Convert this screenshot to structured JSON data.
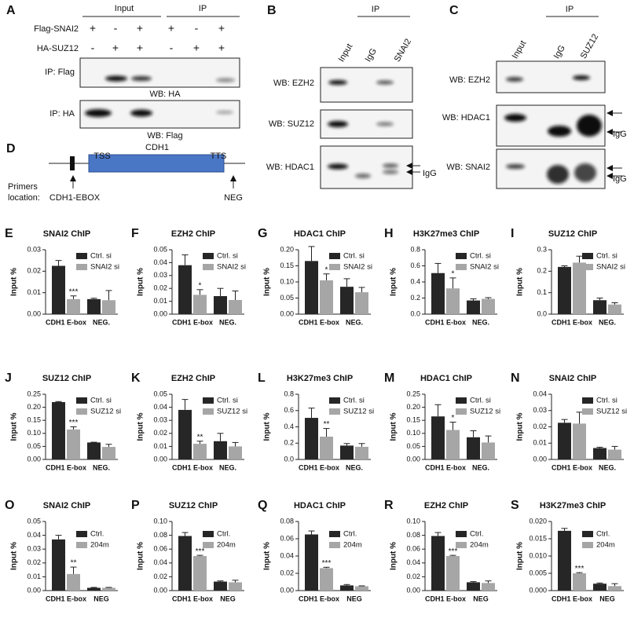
{
  "panel_a": {
    "label": "A",
    "header_input": "Input",
    "header_ip": "IP",
    "rows": [
      {
        "name": "Flag-SNAI2",
        "signs": [
          "+",
          "-",
          "+",
          "+",
          "-",
          "+"
        ]
      },
      {
        "name": "HA-SUZ12",
        "signs": [
          "-",
          "+",
          "+",
          "-",
          "+",
          "+"
        ]
      }
    ],
    "blots": [
      {
        "label": "IP: Flag",
        "wb": "WB: HA"
      },
      {
        "label": "IP: HA",
        "wb": "WB: Flag"
      }
    ]
  },
  "panel_b": {
    "label": "B",
    "ip": "IP",
    "lanes": [
      "Input",
      "IgG",
      "SNAI2"
    ],
    "blots": [
      "WB: EZH2",
      "WB: SUZ12",
      "WB: HDAC1"
    ],
    "igg": "IgG"
  },
  "panel_c": {
    "label": "C",
    "ip": "IP",
    "lanes": [
      "Input",
      "IgG",
      "SUZ12"
    ],
    "blots": [
      "WB: EZH2",
      "WB: HDAC1",
      "WB: SNAI2"
    ],
    "igg": "IgG"
  },
  "panel_d": {
    "label": "D",
    "tss": "TSS",
    "gene": "CDH1",
    "tts": "TTS",
    "primers_1": "Primers",
    "primers_2": "location:",
    "primer_ebox": "CDH1-EBOX",
    "primer_neg": "NEG"
  },
  "chart_data": [
    {
      "type": "bar",
      "label": "E",
      "title": "SNAI2 ChIP",
      "y_label": "Input %",
      "categories": [
        "CDH1 E-box",
        "NEG."
      ],
      "ylim": [
        0,
        0.03
      ],
      "yticks": [
        {
          "value": 0,
          "label": "0.00"
        },
        0.01,
        0.02,
        0.03
      ],
      "series": [
        {
          "name": "Ctrl. si",
          "color": "#262626",
          "values": [
            0.0225,
            0.007
          ],
          "errors": [
            0.0025,
            0.0004
          ]
        },
        {
          "name": "SNAI2 si",
          "color": "#a6a6a6",
          "values": [
            0.007,
            0.0065
          ],
          "errors": [
            0.0015,
            0.0045
          ],
          "significance": [
            "***",
            null
          ]
        }
      ]
    },
    {
      "type": "bar",
      "label": "F",
      "title": "EZH2 ChIP",
      "y_label": "Input %",
      "categories": [
        "CDH1 E-box",
        "NEG."
      ],
      "ylim": [
        0,
        0.05
      ],
      "yticks": [
        {
          "value": 0,
          "label": "0.00"
        },
        0.01,
        0.02,
        0.03,
        0.04,
        0.05
      ],
      "series": [
        {
          "name": "Ctrl. si",
          "color": "#262626",
          "values": [
            0.038,
            0.014
          ],
          "errors": [
            0.008,
            0.006
          ]
        },
        {
          "name": "SNAI2 si",
          "color": "#a6a6a6",
          "values": [
            0.015,
            0.011
          ],
          "errors": [
            0.004,
            0.007
          ],
          "significance": [
            "*",
            null
          ]
        }
      ]
    },
    {
      "type": "bar",
      "label": "G",
      "title": "HDAC1 ChIP",
      "y_label": "Input %",
      "categories": [
        "CDH1 E-box",
        "NEG."
      ],
      "ylim": [
        0,
        0.2
      ],
      "yticks": [
        {
          "value": 0,
          "label": "0.00"
        },
        0.05,
        {
          "value": 0.1,
          "label": "0.10"
        },
        0.15,
        {
          "value": 0.2,
          "label": "0.20"
        }
      ],
      "series": [
        {
          "name": "Ctrl. si",
          "color": "#262626",
          "values": [
            0.165,
            0.085
          ],
          "errors": [
            0.045,
            0.025
          ]
        },
        {
          "name": "SNAI2 si",
          "color": "#a6a6a6",
          "values": [
            0.105,
            0.068
          ],
          "errors": [
            0.02,
            0.015
          ],
          "significance": [
            "*",
            null
          ]
        }
      ]
    },
    {
      "type": "bar",
      "label": "H",
      "title": "H3K27me3 ChIP",
      "y_label": "Input %",
      "categories": [
        "CDH1 E-box",
        "NEG."
      ],
      "ylim": [
        0,
        0.8
      ],
      "yticks": [
        {
          "value": 0,
          "label": "0.0"
        },
        0.2,
        0.4,
        0.6,
        0.8
      ],
      "series": [
        {
          "name": "Ctrl. si",
          "color": "#262626",
          "values": [
            0.51,
            0.17
          ],
          "errors": [
            0.12,
            0.02
          ]
        },
        {
          "name": "SNAI2 si",
          "color": "#a6a6a6",
          "values": [
            0.32,
            0.19
          ],
          "errors": [
            0.13,
            0.015
          ],
          "significance": [
            "*",
            null
          ]
        }
      ]
    },
    {
      "type": "bar",
      "label": "I",
      "title": "SUZ12 ChIP",
      "y_label": "Input %",
      "categories": [
        "CDH1 E-box",
        "NEG."
      ],
      "ylim": [
        0,
        0.3
      ],
      "yticks": [
        {
          "value": 0,
          "label": "0.0"
        },
        0.1,
        0.2,
        0.3
      ],
      "series": [
        {
          "name": "Ctrl. si",
          "color": "#262626",
          "values": [
            0.22,
            0.065
          ],
          "errors": [
            0.005,
            0.01
          ]
        },
        {
          "name": "SNAI2 si",
          "color": "#a6a6a6",
          "values": [
            0.24,
            0.045
          ],
          "errors": [
            0.03,
            0.008
          ]
        }
      ]
    },
    {
      "type": "bar",
      "label": "J",
      "title": "SUZ12 ChIP",
      "y_label": "Input %",
      "categories": [
        "CDH1 E-box",
        "NEG."
      ],
      "ylim": [
        0,
        0.25
      ],
      "yticks": [
        {
          "value": 0,
          "label": "0.00"
        },
        0.05,
        {
          "value": 0.1,
          "label": "0.10"
        },
        0.15,
        {
          "value": 0.2,
          "label": "0.20"
        },
        0.25
      ],
      "series": [
        {
          "name": "Ctrl. si",
          "color": "#262626",
          "values": [
            0.22,
            0.065
          ],
          "errors": [
            0.002,
            0.001
          ]
        },
        {
          "name": "SUZ12 si",
          "color": "#a6a6a6",
          "values": [
            0.115,
            0.048
          ],
          "errors": [
            0.01,
            0.01
          ],
          "significance": [
            "***",
            null
          ]
        }
      ]
    },
    {
      "type": "bar",
      "label": "K",
      "title": "EZH2 ChIP",
      "y_label": "Input %",
      "categories": [
        "CDH1 E-box",
        "NEG."
      ],
      "ylim": [
        0,
        0.05
      ],
      "yticks": [
        {
          "value": 0,
          "label": "0.00"
        },
        0.01,
        0.02,
        0.03,
        0.04,
        0.05
      ],
      "series": [
        {
          "name": "Ctrl. si",
          "color": "#262626",
          "values": [
            0.038,
            0.014
          ],
          "errors": [
            0.008,
            0.006
          ]
        },
        {
          "name": "SUZ12 si",
          "color": "#a6a6a6",
          "values": [
            0.012,
            0.01
          ],
          "errors": [
            0.002,
            0.003
          ],
          "significance": [
            "**",
            null
          ]
        }
      ]
    },
    {
      "type": "bar",
      "label": "L",
      "title": "H3K27me3 ChIP",
      "y_label": "Input %",
      "categories": [
        "CDH1 E-box",
        "NEG."
      ],
      "ylim": [
        0,
        0.8
      ],
      "yticks": [
        {
          "value": 0,
          "label": "0.0"
        },
        0.2,
        0.4,
        0.6,
        0.8
      ],
      "series": [
        {
          "name": "Ctrl. si",
          "color": "#262626",
          "values": [
            0.51,
            0.17
          ],
          "errors": [
            0.12,
            0.025
          ]
        },
        {
          "name": "SUZ12 si",
          "color": "#a6a6a6",
          "values": [
            0.28,
            0.155
          ],
          "errors": [
            0.1,
            0.04
          ],
          "significance": [
            "**",
            null
          ]
        }
      ]
    },
    {
      "type": "bar",
      "label": "M",
      "title": "HDAC1 ChIP",
      "y_label": "Input %",
      "categories": [
        "CDH1 E-box",
        "NEG."
      ],
      "ylim": [
        0,
        0.25
      ],
      "yticks": [
        {
          "value": 0,
          "label": "0.00"
        },
        0.05,
        {
          "value": 0.1,
          "label": "0.10"
        },
        0.15,
        {
          "value": 0.2,
          "label": "0.20"
        },
        0.25
      ],
      "series": [
        {
          "name": "Ctrl. si",
          "color": "#262626",
          "values": [
            0.165,
            0.085
          ],
          "errors": [
            0.045,
            0.025
          ]
        },
        {
          "name": "SUZ12 si",
          "color": "#a6a6a6",
          "values": [
            0.113,
            0.065
          ],
          "errors": [
            0.03,
            0.025
          ],
          "significance": [
            "*",
            null
          ]
        }
      ]
    },
    {
      "type": "bar",
      "label": "N",
      "title": "SNAI2 ChIP",
      "y_label": "Input %",
      "categories": [
        "CDH1 E-box",
        "NEG."
      ],
      "ylim": [
        0,
        0.04
      ],
      "yticks": [
        {
          "value": 0,
          "label": "0.00"
        },
        0.01,
        0.02,
        0.03,
        0.04
      ],
      "series": [
        {
          "name": "Ctrl. si",
          "color": "#262626",
          "values": [
            0.0225,
            0.007
          ],
          "errors": [
            0.002,
            0.0005
          ]
        },
        {
          "name": "SUZ12 si",
          "color": "#a6a6a6",
          "values": [
            0.022,
            0.006
          ],
          "errors": [
            0.007,
            0.002
          ]
        }
      ]
    },
    {
      "type": "bar",
      "label": "O",
      "title": "SNAI2 ChIP",
      "y_label": "Input %",
      "categories": [
        "CDH1 E-box",
        "NEG"
      ],
      "ylim": [
        0,
        0.05
      ],
      "yticks": [
        {
          "value": 0,
          "label": "0.00"
        },
        0.01,
        0.02,
        0.03,
        0.04,
        0.05
      ],
      "series": [
        {
          "name": "Ctrl.",
          "color": "#262626",
          "values": [
            0.037,
            0.002
          ],
          "errors": [
            0.003,
            0.0003
          ]
        },
        {
          "name": "204m",
          "color": "#a6a6a6",
          "values": [
            0.012,
            0.002
          ],
          "errors": [
            0.005,
            0.0003
          ],
          "significance": [
            "**",
            null
          ]
        }
      ]
    },
    {
      "type": "bar",
      "label": "P",
      "title": "SUZ12 ChIP",
      "y_label": "Input %",
      "categories": [
        "CDH1 E-box",
        "NEG"
      ],
      "ylim": [
        0,
        0.1
      ],
      "yticks": [
        {
          "value": 0,
          "label": "0.00"
        },
        0.02,
        0.04,
        0.06,
        0.08,
        {
          "value": 0.1,
          "label": "0.10"
        }
      ],
      "series": [
        {
          "name": "Ctrl.",
          "color": "#262626",
          "values": [
            0.079,
            0.013
          ],
          "errors": [
            0.005,
            0.001
          ]
        },
        {
          "name": "204m",
          "color": "#a6a6a6",
          "values": [
            0.05,
            0.012
          ],
          "errors": [
            0.001,
            0.003
          ],
          "significance": [
            "***",
            null
          ]
        }
      ]
    },
    {
      "type": "bar",
      "label": "Q",
      "title": "HDAC1 ChIP",
      "y_label": "Input %",
      "categories": [
        "CDH1 E-box",
        "NEG"
      ],
      "ylim": [
        0,
        0.08
      ],
      "yticks": [
        {
          "value": 0,
          "label": "0.00"
        },
        0.02,
        0.04,
        0.06,
        0.08
      ],
      "series": [
        {
          "name": "Ctrl.",
          "color": "#262626",
          "values": [
            0.065,
            0.006
          ],
          "errors": [
            0.004,
            0.001
          ]
        },
        {
          "name": "204m",
          "color": "#a6a6a6",
          "values": [
            0.026,
            0.005
          ],
          "errors": [
            0.001,
            0.0005
          ],
          "significance": [
            "***",
            null
          ]
        }
      ]
    },
    {
      "type": "bar",
      "label": "R",
      "title": "EZH2 ChIP",
      "y_label": "Input %",
      "categories": [
        "CDH1 E-box",
        "NEG"
      ],
      "ylim": [
        0,
        0.1
      ],
      "yticks": [
        {
          "value": 0,
          "label": "0.00"
        },
        0.02,
        0.04,
        0.06,
        0.08,
        {
          "value": 0.1,
          "label": "0.10"
        }
      ],
      "series": [
        {
          "name": "Ctrl.",
          "color": "#262626",
          "values": [
            0.079,
            0.012
          ],
          "errors": [
            0.005,
            0.001
          ]
        },
        {
          "name": "204m",
          "color": "#a6a6a6",
          "values": [
            0.05,
            0.011
          ],
          "errors": [
            0.001,
            0.003
          ],
          "significance": [
            "***",
            null
          ]
        }
      ]
    },
    {
      "type": "bar",
      "label": "S",
      "title": "H3K27me3 ChIP",
      "y_label": "Input %",
      "categories": [
        "CDH1 E-box",
        "NEG"
      ],
      "ylim": [
        0,
        0.02
      ],
      "yticks": [
        {
          "value": 0,
          "label": "0.000"
        },
        0.005,
        {
          "value": 0.01,
          "label": "0.010"
        },
        0.015,
        {
          "value": 0.02,
          "label": "0.020"
        }
      ],
      "series": [
        {
          "name": "Ctrl.",
          "color": "#262626",
          "values": [
            0.0173,
            0.002
          ],
          "errors": [
            0.0007,
            0.0002
          ]
        },
        {
          "name": "204m",
          "color": "#a6a6a6",
          "values": [
            0.005,
            0.0013
          ],
          "errors": [
            0.0002,
            0.0007
          ],
          "significance": [
            "***",
            null
          ]
        }
      ]
    }
  ]
}
